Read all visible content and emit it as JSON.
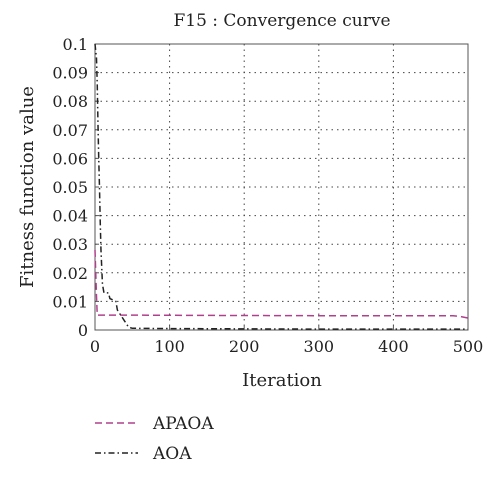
{
  "chart_data": {
    "type": "line",
    "title": "F15 : Convergence curve",
    "xlabel": "Iteration",
    "ylabel": "Fitness function value",
    "xlim": [
      0,
      500
    ],
    "ylim": [
      0,
      0.1
    ],
    "x_ticks": [
      "0",
      "100",
      "200",
      "300",
      "400",
      "500"
    ],
    "y_ticks": [
      "0",
      "0.01",
      "0.02",
      "0.03",
      "0.04",
      "0.05",
      "0.06",
      "0.07",
      "0.08",
      "0.09",
      "0.1"
    ],
    "grid": true,
    "legend_position": "bottom",
    "series": [
      {
        "name": "APAOA",
        "color": "#b0408c",
        "dash": "dashed",
        "points": [
          [
            0,
            0.028
          ],
          [
            2,
            0.012
          ],
          [
            3,
            0.0052
          ],
          [
            50,
            0.0052
          ],
          [
            150,
            0.0051
          ],
          [
            300,
            0.005
          ],
          [
            480,
            0.005
          ],
          [
            490,
            0.0047
          ],
          [
            500,
            0.0042
          ]
        ]
      },
      {
        "name": "AOA",
        "color": "#222222",
        "dash": "dashdot",
        "points": [
          [
            0,
            0.1
          ],
          [
            2,
            0.095
          ],
          [
            3,
            0.086
          ],
          [
            4,
            0.072
          ],
          [
            5,
            0.06
          ],
          [
            6,
            0.05
          ],
          [
            7,
            0.038
          ],
          [
            8,
            0.028
          ],
          [
            9,
            0.022
          ],
          [
            10,
            0.016
          ],
          [
            12,
            0.013
          ],
          [
            18,
            0.013
          ],
          [
            20,
            0.011
          ],
          [
            28,
            0.01
          ],
          [
            30,
            0.007
          ],
          [
            35,
            0.005
          ],
          [
            40,
            0.003
          ],
          [
            45,
            0.001
          ],
          [
            50,
            0.0006
          ],
          [
            100,
            0.0005
          ],
          [
            200,
            0.0004
          ],
          [
            300,
            0.0003
          ],
          [
            400,
            0.0003
          ],
          [
            500,
            0.0003
          ]
        ]
      }
    ]
  }
}
